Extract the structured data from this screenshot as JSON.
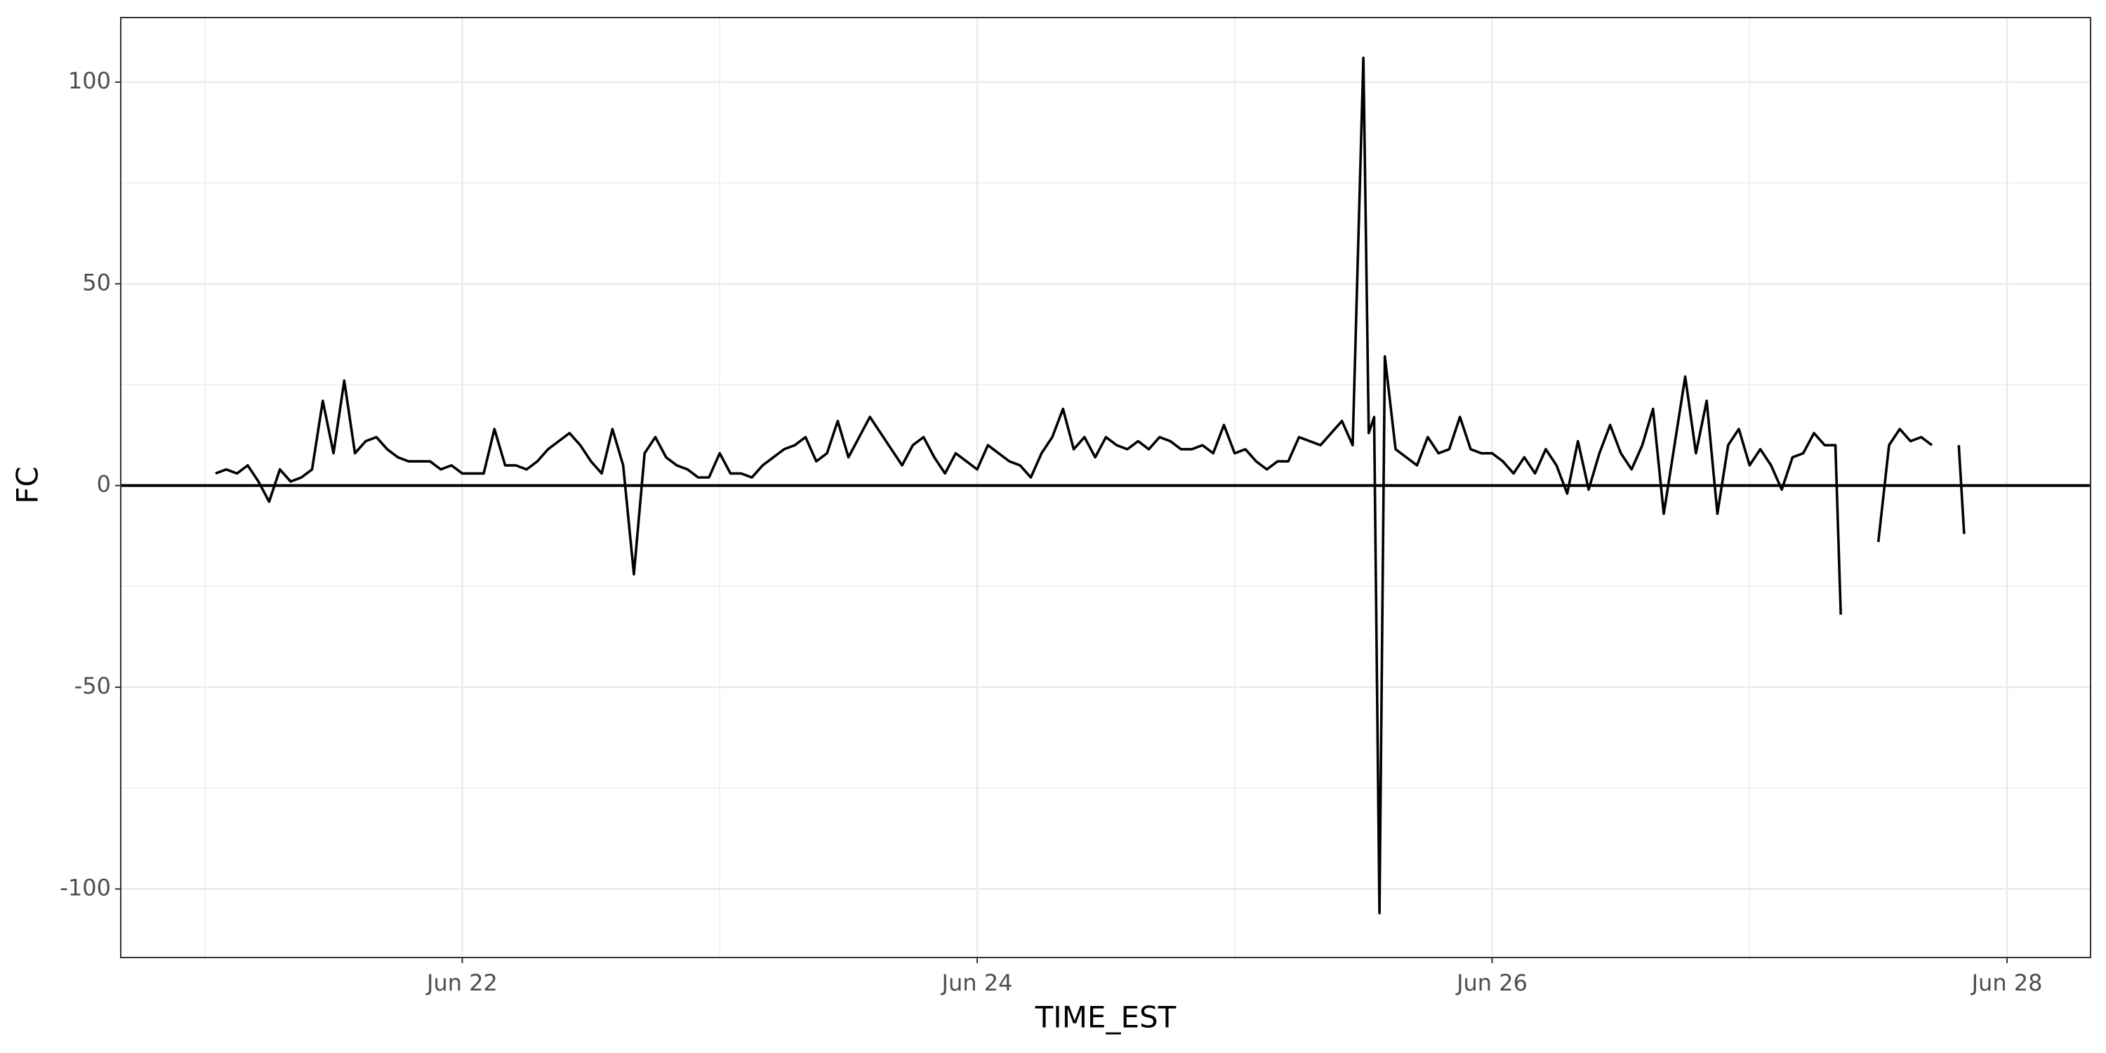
{
  "chart_data": {
    "type": "line",
    "x_label": "TIME_EST",
    "y_label": "FC",
    "x": [
      "Jun 21 01:00",
      "Jun 21 02:00",
      "Jun 21 03:00",
      "Jun 21 04:00",
      "Jun 21 05:00",
      "Jun 21 06:00",
      "Jun 21 07:00",
      "Jun 21 08:00",
      "Jun 21 09:00",
      "Jun 21 10:00",
      "Jun 21 11:00",
      "Jun 21 12:00",
      "Jun 21 13:00",
      "Jun 21 14:00",
      "Jun 21 15:00",
      "Jun 21 16:00",
      "Jun 21 17:00",
      "Jun 21 18:00",
      "Jun 21 19:00",
      "Jun 21 20:00",
      "Jun 21 21:00",
      "Jun 21 22:00",
      "Jun 21 23:00",
      "Jun 22 00:00",
      "Jun 22 01:00",
      "Jun 22 02:00",
      "Jun 22 03:00",
      "Jun 22 04:00",
      "Jun 22 05:00",
      "Jun 22 06:00",
      "Jun 22 07:00",
      "Jun 22 08:00",
      "Jun 22 09:00",
      "Jun 22 10:00",
      "Jun 22 11:00",
      "Jun 22 12:00",
      "Jun 22 13:00",
      "Jun 22 14:00",
      "Jun 22 15:00",
      "Jun 22 16:00",
      "Jun 22 17:00",
      "Jun 22 18:00",
      "Jun 22 19:00",
      "Jun 22 20:00",
      "Jun 22 21:00",
      "Jun 22 22:00",
      "Jun 22 23:00",
      "Jun 23 00:00",
      "Jun 23 01:00",
      "Jun 23 02:00",
      "Jun 23 03:00",
      "Jun 23 04:00",
      "Jun 23 05:00",
      "Jun 23 06:00",
      "Jun 23 07:00",
      "Jun 23 08:00",
      "Jun 23 09:00",
      "Jun 23 10:00",
      "Jun 23 11:00",
      "Jun 23 12:00",
      "Jun 23 13:00",
      "Jun 23 14:00",
      "Jun 23 15:00",
      "Jun 23 16:00",
      "Jun 23 17:00",
      "Jun 23 18:00",
      "Jun 23 19:00",
      "Jun 23 20:00",
      "Jun 23 21:00",
      "Jun 23 22:00",
      "Jun 23 23:00",
      "Jun 24 00:00",
      "Jun 24 01:00",
      "Jun 24 02:00",
      "Jun 24 03:00",
      "Jun 24 04:00",
      "Jun 24 05:00",
      "Jun 24 06:00",
      "Jun 24 07:00",
      "Jun 24 08:00",
      "Jun 24 09:00",
      "Jun 24 10:00",
      "Jun 24 11:00",
      "Jun 24 12:00",
      "Jun 24 13:00",
      "Jun 24 14:00",
      "Jun 24 15:00",
      "Jun 24 16:00",
      "Jun 24 17:00",
      "Jun 24 18:00",
      "Jun 24 19:00",
      "Jun 24 20:00",
      "Jun 24 21:00",
      "Jun 24 22:00",
      "Jun 24 23:00",
      "Jun 25 00:00",
      "Jun 25 01:00",
      "Jun 25 02:00",
      "Jun 25 03:00",
      "Jun 25 04:00",
      "Jun 25 05:00",
      "Jun 25 06:00",
      "Jun 25 07:00",
      "Jun 25 08:00",
      "Jun 25 09:00",
      "Jun 25 10:00",
      "Jun 25 11:00",
      "Jun 25 12:00",
      "Jun 25 12:30",
      "Jun 25 13:00",
      "Jun 25 13:30",
      "Jun 25 14:00",
      "Jun 25 15:00",
      "Jun 25 16:00",
      "Jun 25 17:00",
      "Jun 25 18:00",
      "Jun 25 19:00",
      "Jun 25 20:00",
      "Jun 25 21:00",
      "Jun 25 22:00",
      "Jun 25 23:00",
      "Jun 26 00:00",
      "Jun 26 01:00",
      "Jun 26 02:00",
      "Jun 26 03:00",
      "Jun 26 04:00",
      "Jun 26 05:00",
      "Jun 26 06:00",
      "Jun 26 07:00",
      "Jun 26 08:00",
      "Jun 26 09:00",
      "Jun 26 10:00",
      "Jun 26 11:00",
      "Jun 26 12:00",
      "Jun 26 13:00",
      "Jun 26 14:00",
      "Jun 26 15:00",
      "Jun 26 16:00",
      "Jun 26 17:00",
      "Jun 26 18:00",
      "Jun 26 19:00",
      "Jun 26 20:00",
      "Jun 26 21:00",
      "Jun 26 22:00",
      "Jun 26 23:00",
      "Jun 27 00:00",
      "Jun 27 01:00",
      "Jun 27 02:00",
      "Jun 27 03:00",
      "Jun 27 04:00",
      "Jun 27 05:00",
      "Jun 27 06:00",
      "Jun 27 07:00",
      "Jun 27 08:00",
      "Jun 27 08:30",
      "Jun 27 09:00",
      "Jun 27 12:00",
      "Jun 27 13:00",
      "Jun 27 14:00",
      "Jun 27 15:00",
      "Jun 27 16:00",
      "Jun 27 17:00",
      "Jun 27 18:00",
      "Jun 27 19:30",
      "Jun 27 20:00"
    ],
    "series": [
      {
        "color": "#000000",
        "values": [
          3,
          4,
          3,
          5,
          1,
          -4,
          4,
          1,
          2,
          4,
          21,
          8,
          26,
          8,
          11,
          12,
          9,
          7,
          6,
          6,
          6,
          4,
          5,
          3,
          3,
          3,
          14,
          5,
          5,
          4,
          6,
          9,
          11,
          13,
          10,
          6,
          3,
          14,
          5,
          -22,
          8,
          12,
          7,
          5,
          4,
          2,
          2,
          8,
          3,
          3,
          2,
          5,
          7,
          9,
          10,
          12,
          6,
          8,
          16,
          7,
          12,
          17,
          13,
          9,
          5,
          10,
          12,
          7,
          3,
          8,
          6,
          4,
          10,
          8,
          6,
          5,
          2,
          8,
          12,
          19,
          9,
          12,
          7,
          12,
          10,
          9,
          11,
          9,
          12,
          11,
          9,
          9,
          10,
          8,
          15,
          8,
          9,
          6,
          4,
          6,
          6,
          12,
          11,
          10,
          13,
          16,
          10,
          106,
          13,
          17,
          -106,
          32,
          9,
          7,
          5,
          12,
          8,
          9,
          17,
          9,
          8,
          8,
          6,
          3,
          7,
          3,
          9,
          5,
          -2,
          11,
          -1,
          8,
          15,
          8,
          4,
          10,
          19,
          -7,
          10,
          27,
          8,
          21,
          -7,
          10,
          14,
          5,
          9,
          5,
          -1,
          7,
          8,
          13,
          10,
          10,
          -32,
          null,
          -14,
          10,
          14,
          11,
          12,
          10,
          null,
          10,
          -12
        ]
      }
    ],
    "xlim": [
      "Jun 20 16:10",
      "Jun 28 07:47"
    ],
    "xticks": [
      {
        "value": "Jun 22 00:00",
        "label": "Jun 22"
      },
      {
        "value": "Jun 24 00:00",
        "label": "Jun 24"
      },
      {
        "value": "Jun 26 00:00",
        "label": "Jun 26"
      },
      {
        "value": "Jun 28 00:00",
        "label": "Jun 28"
      }
    ],
    "minor_xticks": [
      "Jun 21 00:00",
      "Jun 23 00:00",
      "Jun 25 00:00",
      "Jun 27 00:00"
    ],
    "ylim": [
      -117,
      116
    ],
    "yticks": [
      -100,
      -50,
      0,
      50,
      100
    ],
    "minor_yticks": [
      -75,
      -25,
      25,
      75
    ],
    "hline": 0,
    "grid": true
  }
}
